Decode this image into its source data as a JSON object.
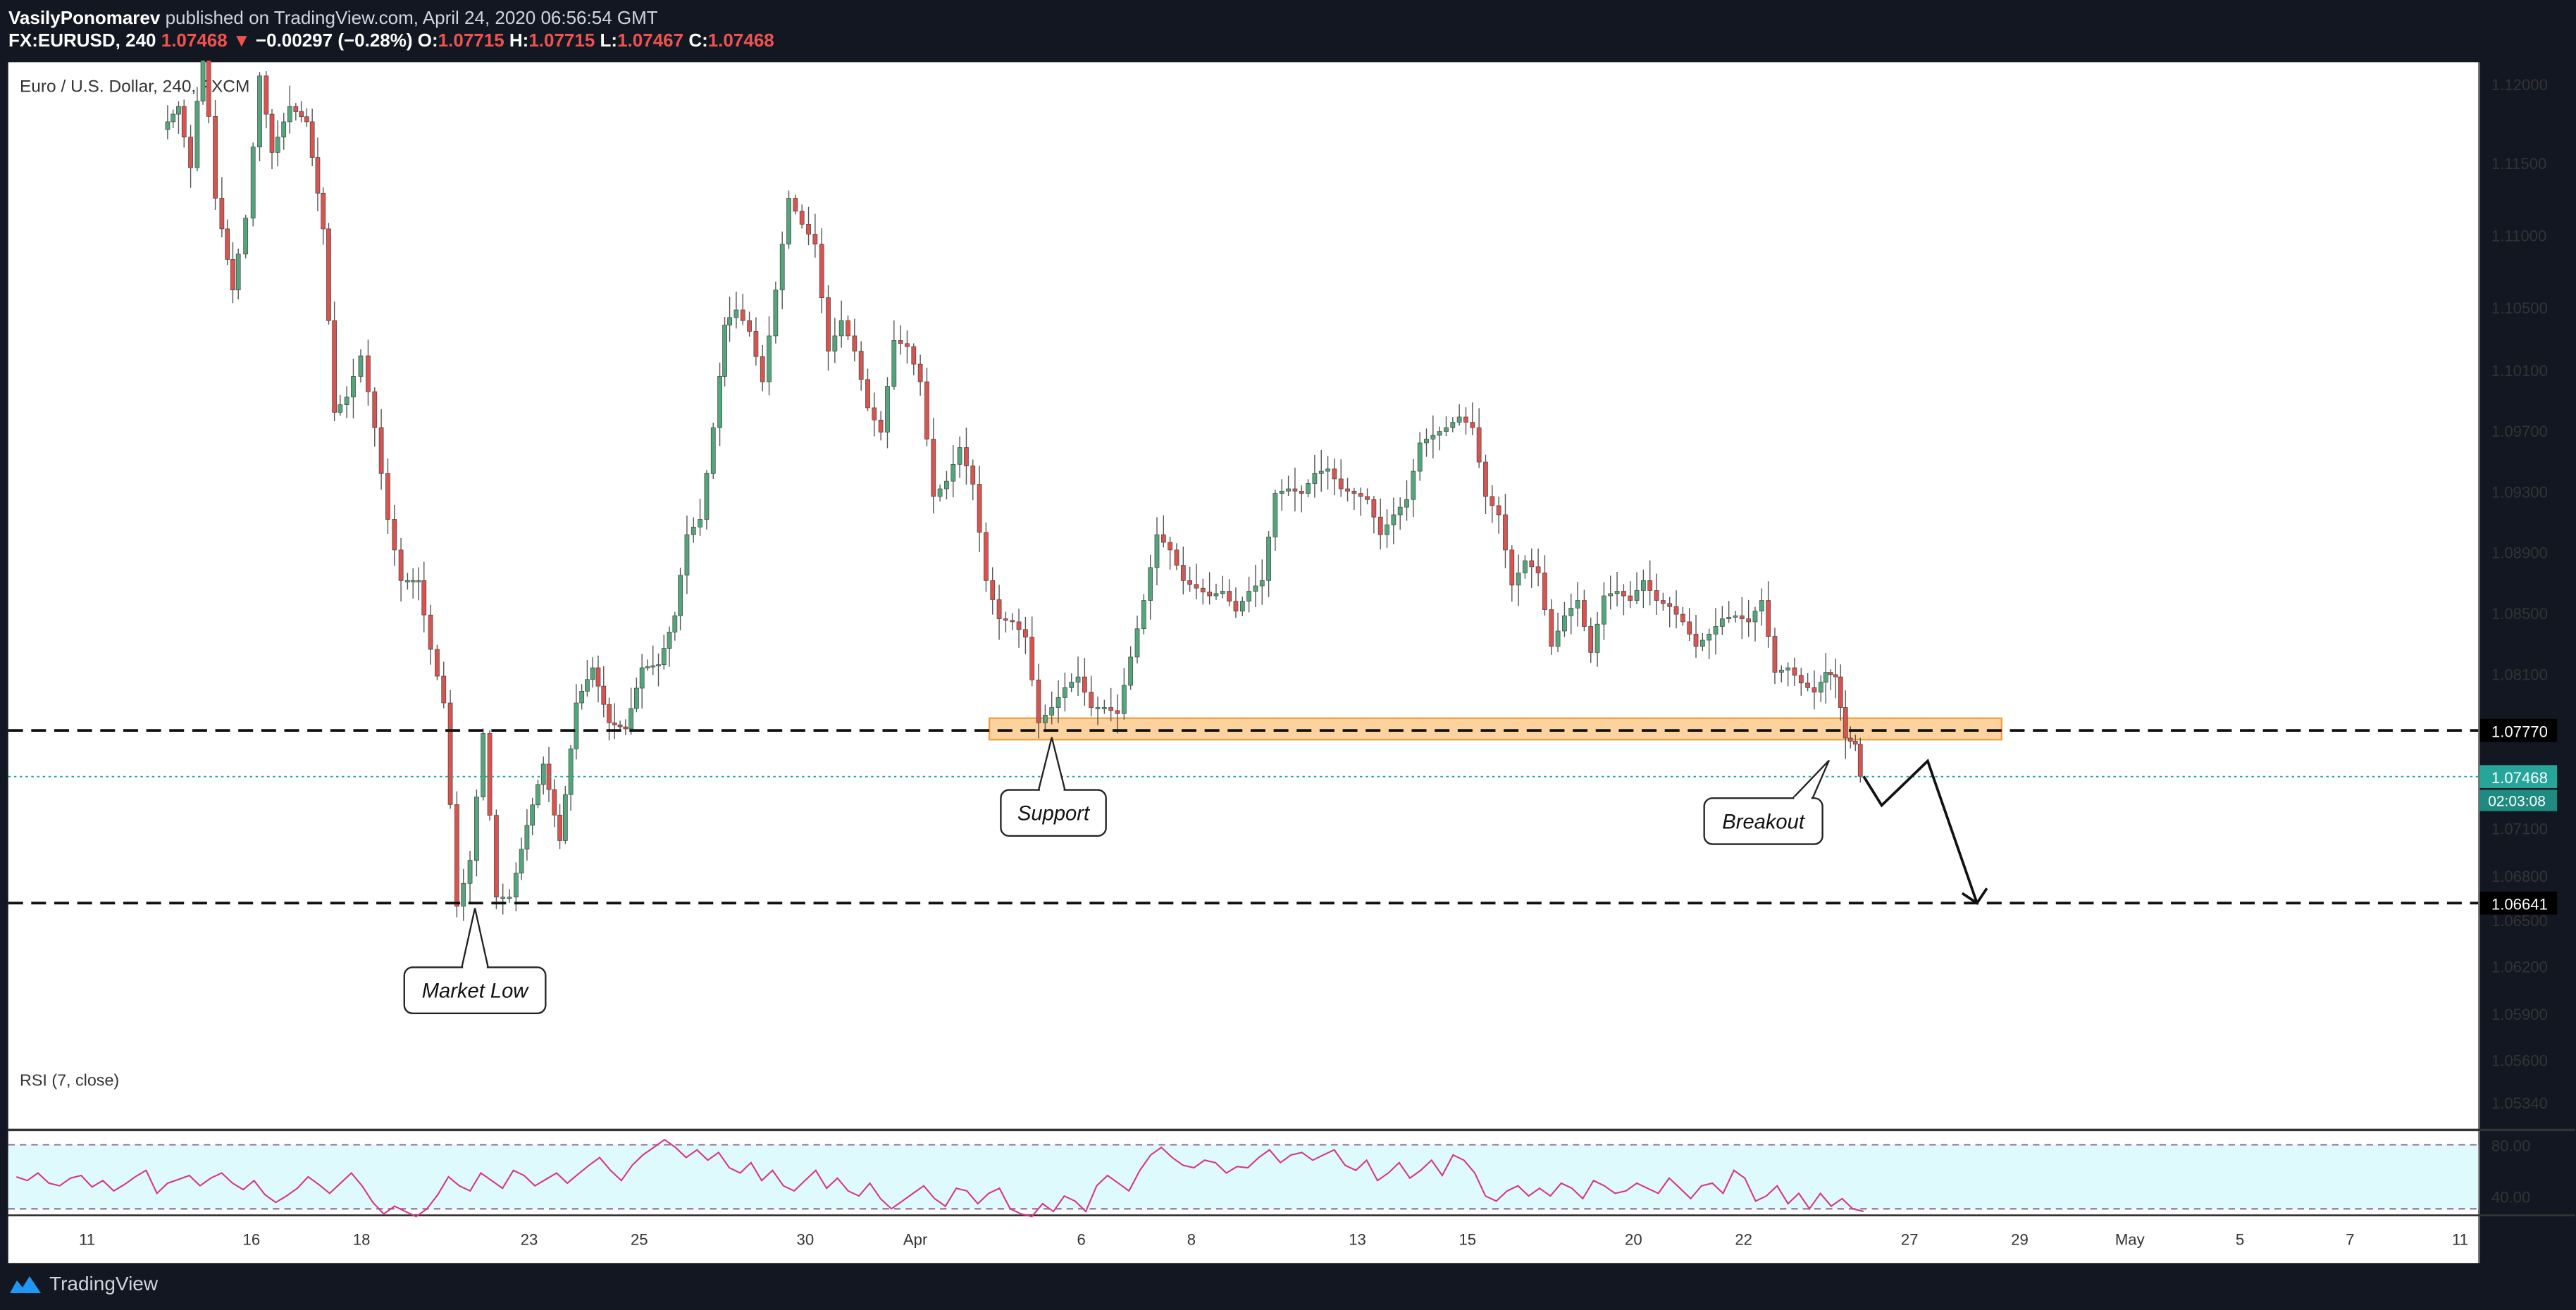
{
  "header": {
    "author": "VasilyPonomarev",
    "published_text": "published on TradingView.com, April 24, 2020 06:56:54 GMT",
    "symbol": "FX:EURUSD, 240",
    "last": "1.07468",
    "change_arrow": "▼",
    "change": "−0.00297 (−0.28%)",
    "o_label": "O:",
    "o": "1.07715",
    "h_label": "H:",
    "h": "1.07715",
    "l_label": "L:",
    "l": "1.07467",
    "c_label": "C:",
    "c": "1.07468"
  },
  "footer": {
    "brand": "TradingView",
    "brand_icon": "tradingview-logo-icon"
  },
  "colors": {
    "background": "#131722",
    "chart_bg": "#ffffff",
    "up": "#26a69a",
    "candle_up": "#53a67c",
    "candle_down": "#d9534f",
    "zone_fill": "#fcd29f",
    "zone_stroke": "#f0a040",
    "rsi_line": "#d6368a",
    "rsi_band": "#dffafc",
    "axis_text": "#333333"
  },
  "chart_data": {
    "type": "candlestick",
    "title": "Euro / U.S. Dollar, 240, FXCM",
    "y_ticks": [
      "1.12000",
      "1.11500",
      "1.11000",
      "1.10500",
      "1.10100",
      "1.09700",
      "1.09300",
      "1.08900",
      "1.08500",
      "1.08100",
      "1.07700",
      "1.07100",
      "1.06800",
      "1.06500",
      "1.06200",
      "1.05900",
      "1.05600",
      "1.05340"
    ],
    "ylim": [
      1.0515,
      1.1225
    ],
    "x_ticks": [
      {
        "label": "11",
        "x": 53
      },
      {
        "label": "16",
        "x": 153
      },
      {
        "label": "18",
        "x": 220
      },
      {
        "label": "23",
        "x": 322
      },
      {
        "label": "25",
        "x": 389
      },
      {
        "label": "30",
        "x": 490
      },
      {
        "label": "Apr",
        "x": 557
      },
      {
        "label": "6",
        "x": 658
      },
      {
        "label": "8",
        "x": 725
      },
      {
        "label": "13",
        "x": 826
      },
      {
        "label": "15",
        "x": 893
      },
      {
        "label": "20",
        "x": 994
      },
      {
        "label": "22",
        "x": 1061
      },
      {
        "label": "27",
        "x": 1162
      },
      {
        "label": "29",
        "x": 1229
      },
      {
        "label": "May",
        "x": 1296
      },
      {
        "label": "5",
        "x": 1363
      },
      {
        "label": "7",
        "x": 1430
      },
      {
        "label": "11",
        "x": 1497
      }
    ],
    "levels": [
      {
        "value": 1.0777,
        "label": "1.07770"
      },
      {
        "value": 1.06641,
        "label": "1.06641"
      }
    ],
    "current_price": {
      "value": 1.07468,
      "label": "1.07468",
      "countdown": "02:03:08"
    },
    "zone": {
      "from": 1.0771,
      "to": 1.0785
    },
    "annotations": [
      "Market Low",
      "Support",
      "Breakout"
    ],
    "anchors": [
      {
        "x": 100,
        "p": 1.117
      },
      {
        "x": 110,
        "p": 1.1185
      },
      {
        "x": 118,
        "p": 1.1145
      },
      {
        "x": 125,
        "p": 1.1232
      },
      {
        "x": 133,
        "p": 1.1125
      },
      {
        "x": 143,
        "p": 1.1065
      },
      {
        "x": 152,
        "p": 1.1112
      },
      {
        "x": 160,
        "p": 1.1205
      },
      {
        "x": 167,
        "p": 1.1155
      },
      {
        "x": 178,
        "p": 1.1185
      },
      {
        "x": 188,
        "p": 1.1175
      },
      {
        "x": 198,
        "p": 1.1105
      },
      {
        "x": 205,
        "p": 1.0985
      },
      {
        "x": 213,
        "p": 1.0995
      },
      {
        "x": 222,
        "p": 1.1022
      },
      {
        "x": 230,
        "p": 1.0975
      },
      {
        "x": 238,
        "p": 1.0915
      },
      {
        "x": 246,
        "p": 1.0875
      },
      {
        "x": 256,
        "p": 1.0875
      },
      {
        "x": 264,
        "p": 1.083
      },
      {
        "x": 272,
        "p": 1.0795
      },
      {
        "x": 280,
        "p": 1.0662
      },
      {
        "x": 288,
        "p": 1.0692
      },
      {
        "x": 296,
        "p": 1.0775
      },
      {
        "x": 304,
        "p": 1.0668
      },
      {
        "x": 312,
        "p": 1.0668
      },
      {
        "x": 322,
        "p": 1.0715
      },
      {
        "x": 332,
        "p": 1.0755
      },
      {
        "x": 342,
        "p": 1.0705
      },
      {
        "x": 352,
        "p": 1.0795
      },
      {
        "x": 362,
        "p": 1.0818
      },
      {
        "x": 372,
        "p": 1.0782
      },
      {
        "x": 382,
        "p": 1.0778
      },
      {
        "x": 392,
        "p": 1.0818
      },
      {
        "x": 402,
        "p": 1.082
      },
      {
        "x": 412,
        "p": 1.0852
      },
      {
        "x": 420,
        "p": 1.0905
      },
      {
        "x": 428,
        "p": 1.0915
      },
      {
        "x": 436,
        "p": 1.0975
      },
      {
        "x": 442,
        "p": 1.1042
      },
      {
        "x": 450,
        "p": 1.1052
      },
      {
        "x": 458,
        "p": 1.1038
      },
      {
        "x": 466,
        "p": 1.1005
      },
      {
        "x": 474,
        "p": 1.1065
      },
      {
        "x": 482,
        "p": 1.1125
      },
      {
        "x": 490,
        "p": 1.1108
      },
      {
        "x": 498,
        "p": 1.1095
      },
      {
        "x": 506,
        "p": 1.1025
      },
      {
        "x": 514,
        "p": 1.1045
      },
      {
        "x": 522,
        "p": 1.1025
      },
      {
        "x": 530,
        "p": 1.0988
      },
      {
        "x": 538,
        "p": 1.0972
      },
      {
        "x": 546,
        "p": 1.1032
      },
      {
        "x": 554,
        "p": 1.1028
      },
      {
        "x": 562,
        "p": 1.1005
      },
      {
        "x": 570,
        "p": 1.093
      },
      {
        "x": 578,
        "p": 1.094
      },
      {
        "x": 586,
        "p": 1.0962
      },
      {
        "x": 594,
        "p": 1.0938
      },
      {
        "x": 602,
        "p": 1.0875
      },
      {
        "x": 610,
        "p": 1.085
      },
      {
        "x": 618,
        "p": 1.0848
      },
      {
        "x": 626,
        "p": 1.0838
      },
      {
        "x": 634,
        "p": 1.0782
      },
      {
        "x": 642,
        "p": 1.0792
      },
      {
        "x": 650,
        "p": 1.0805
      },
      {
        "x": 658,
        "p": 1.0812
      },
      {
        "x": 666,
        "p": 1.0792
      },
      {
        "x": 674,
        "p": 1.0792
      },
      {
        "x": 682,
        "p": 1.0788
      },
      {
        "x": 690,
        "p": 1.0825
      },
      {
        "x": 698,
        "p": 1.0862
      },
      {
        "x": 706,
        "p": 1.0905
      },
      {
        "x": 714,
        "p": 1.0895
      },
      {
        "x": 722,
        "p": 1.0875
      },
      {
        "x": 730,
        "p": 1.087
      },
      {
        "x": 738,
        "p": 1.0865
      },
      {
        "x": 746,
        "p": 1.0868
      },
      {
        "x": 754,
        "p": 1.0855
      },
      {
        "x": 762,
        "p": 1.0868
      },
      {
        "x": 770,
        "p": 1.0875
      },
      {
        "x": 778,
        "p": 1.0932
      },
      {
        "x": 786,
        "p": 1.0935
      },
      {
        "x": 794,
        "p": 1.0932
      },
      {
        "x": 802,
        "p": 1.0945
      },
      {
        "x": 810,
        "p": 1.0948
      },
      {
        "x": 818,
        "p": 1.0935
      },
      {
        "x": 826,
        "p": 1.0932
      },
      {
        "x": 834,
        "p": 1.0928
      },
      {
        "x": 842,
        "p": 1.0905
      },
      {
        "x": 850,
        "p": 1.0918
      },
      {
        "x": 858,
        "p": 1.0928
      },
      {
        "x": 866,
        "p": 1.0965
      },
      {
        "x": 874,
        "p": 1.097
      },
      {
        "x": 882,
        "p": 1.0975
      },
      {
        "x": 890,
        "p": 1.0982
      },
      {
        "x": 898,
        "p": 1.0975
      },
      {
        "x": 906,
        "p": 1.093
      },
      {
        "x": 914,
        "p": 1.0918
      },
      {
        "x": 922,
        "p": 1.0872
      },
      {
        "x": 930,
        "p": 1.0888
      },
      {
        "x": 938,
        "p": 1.088
      },
      {
        "x": 946,
        "p": 1.0832
      },
      {
        "x": 954,
        "p": 1.0852
      },
      {
        "x": 962,
        "p": 1.0862
      },
      {
        "x": 970,
        "p": 1.0828
      },
      {
        "x": 978,
        "p": 1.0865
      },
      {
        "x": 986,
        "p": 1.0868
      },
      {
        "x": 994,
        "p": 1.0862
      },
      {
        "x": 1002,
        "p": 1.0875
      },
      {
        "x": 1010,
        "p": 1.0862
      },
      {
        "x": 1018,
        "p": 1.0858
      },
      {
        "x": 1026,
        "p": 1.0848
      },
      {
        "x": 1034,
        "p": 1.0832
      },
      {
        "x": 1042,
        "p": 1.084
      },
      {
        "x": 1050,
        "p": 1.085
      },
      {
        "x": 1058,
        "p": 1.0852
      },
      {
        "x": 1066,
        "p": 1.0848
      },
      {
        "x": 1074,
        "p": 1.0862
      },
      {
        "x": 1082,
        "p": 1.0815
      },
      {
        "x": 1090,
        "p": 1.0818
      },
      {
        "x": 1098,
        "p": 1.0808
      },
      {
        "x": 1106,
        "p": 1.0802
      },
      {
        "x": 1112,
        "p": 1.0815
      },
      {
        "x": 1118,
        "p": 1.0812
      },
      {
        "x": 1124,
        "p": 1.0772
      },
      {
        "x": 1130,
        "p": 1.0768
      },
      {
        "x": 1134,
        "p": 1.0747
      }
    ],
    "forecast_path": [
      {
        "x": 1134,
        "p": 1.0747
      },
      {
        "x": 1145,
        "p": 1.0728
      },
      {
        "x": 1173,
        "p": 1.0757
      },
      {
        "x": 1203,
        "p": 1.06641
      }
    ],
    "rsi": {
      "label": "RSI (7, close)",
      "ticks": [
        "80.00",
        "40.00"
      ],
      "levels": [
        80,
        30
      ],
      "ylim": [
        20,
        90
      ],
      "values": [
        55,
        52,
        58,
        50,
        48,
        54,
        56,
        47,
        52,
        44,
        49,
        55,
        60,
        42,
        50,
        53,
        56,
        48,
        54,
        58,
        50,
        45,
        52,
        41,
        35,
        40,
        46,
        55,
        49,
        42,
        50,
        58,
        48,
        35,
        26,
        32,
        28,
        24,
        30,
        41,
        55,
        48,
        44,
        58,
        52,
        46,
        60,
        56,
        48,
        53,
        58,
        50,
        57,
        64,
        70,
        60,
        52,
        64,
        72,
        78,
        84,
        78,
        70,
        76,
        68,
        74,
        62,
        58,
        66,
        52,
        60,
        48,
        44,
        52,
        60,
        46,
        54,
        44,
        40,
        50,
        38,
        30,
        36,
        42,
        48,
        38,
        32,
        46,
        44,
        34,
        42,
        46,
        30,
        26,
        24,
        34,
        28,
        40,
        36,
        28,
        48,
        56,
        50,
        44,
        60,
        72,
        78,
        70,
        64,
        62,
        68,
        66,
        58,
        63,
        62,
        70,
        76,
        66,
        72,
        74,
        68,
        72,
        76,
        64,
        60,
        68,
        52,
        58,
        66,
        54,
        60,
        68,
        56,
        72,
        68,
        58,
        40,
        36,
        44,
        48,
        40,
        46,
        40,
        50,
        46,
        38,
        52,
        48,
        42,
        44,
        50,
        46,
        42,
        54,
        46,
        38,
        48,
        50,
        42,
        60,
        54,
        36,
        40,
        48,
        34,
        42,
        30,
        42,
        32,
        38,
        30,
        28
      ]
    }
  }
}
